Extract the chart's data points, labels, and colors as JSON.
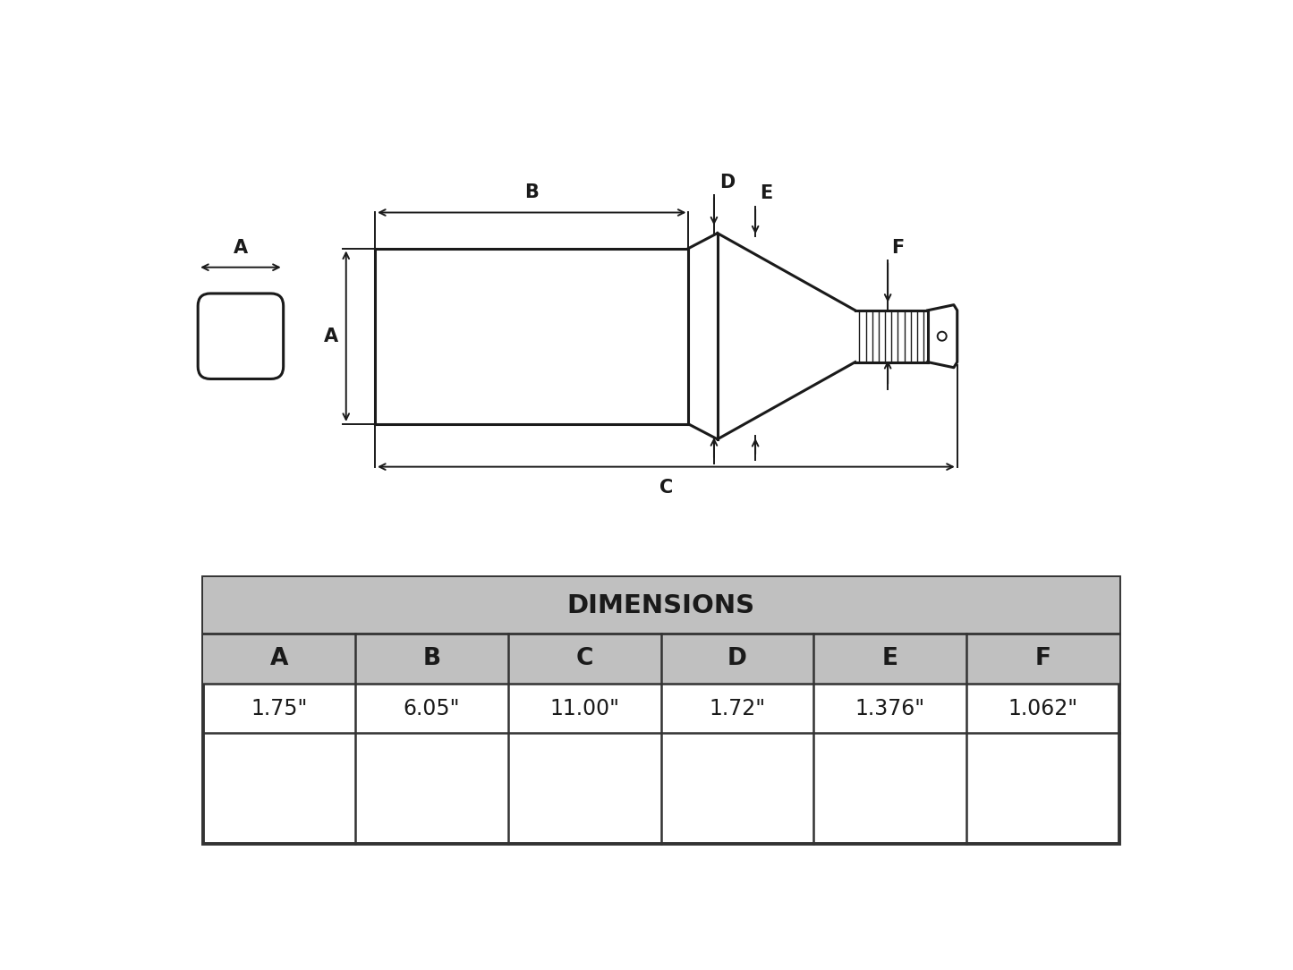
{
  "bg_color": "#ffffff",
  "line_color": "#1a1a1a",
  "table_header_bg": "#c0c0c0",
  "table_border_color": "#333333",
  "dim_labels": [
    "A",
    "B",
    "C",
    "D",
    "E",
    "F"
  ],
  "dim_values": [
    "1.75\"",
    "6.05\"",
    "11.00\"",
    "1.72\"",
    "1.376\"",
    "1.062\""
  ],
  "table_title": "DIMENSIONS",
  "lw": 2.2,
  "thin_lw": 1.4
}
